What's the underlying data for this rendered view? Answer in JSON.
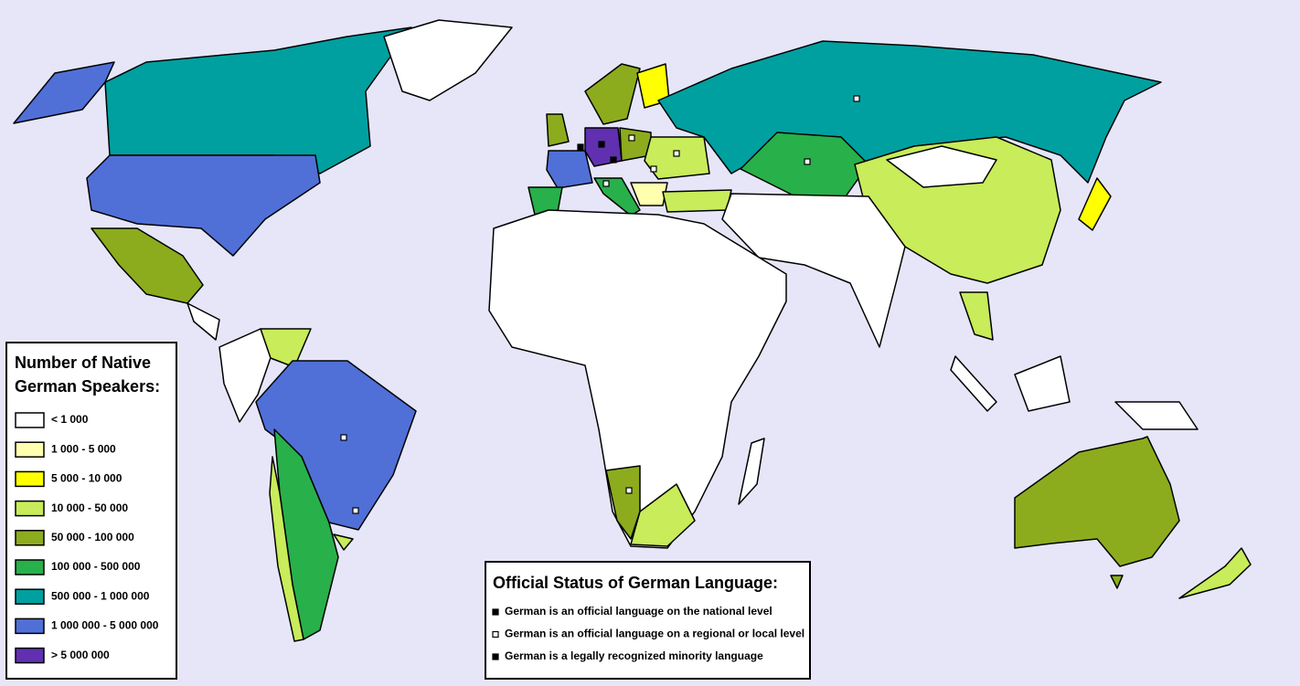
{
  "legend_speakers": {
    "title_lines": [
      "Number of Native",
      "German Speakers:"
    ],
    "entries": [
      {
        "label": "< 1 000",
        "color": "#ffffff"
      },
      {
        "label": "1 000 - 5 000",
        "color": "#ffffb0"
      },
      {
        "label": "5 000 - 10 000",
        "color": "#ffff00"
      },
      {
        "label": "10 000 - 50 000",
        "color": "#c8ec5a"
      },
      {
        "label": "50 000 - 100 000",
        "color": "#8cac1e"
      },
      {
        "label": "100 000 - 500 000",
        "color": "#28b04a"
      },
      {
        "label": "500 000 - 1 000 000",
        "color": "#00a0a0"
      },
      {
        "label": "1 000 000 - 5 000 000",
        "color": "#5070d8"
      },
      {
        "label": "> 5 000 000",
        "color": "#6030b0"
      }
    ]
  },
  "legend_status": {
    "title": "Official Status of German Language:",
    "entries": [
      "German is an official language on the national level",
      "German is an official language on a regional or local level",
      "German is a legally recognized minority language"
    ]
  }
}
